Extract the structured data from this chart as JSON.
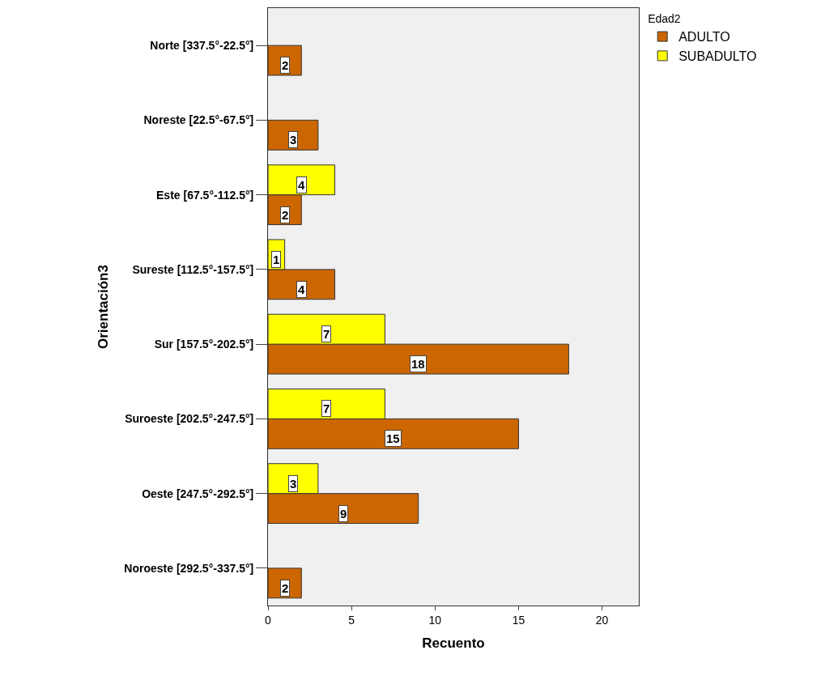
{
  "chart_data": {
    "type": "bar",
    "orientation": "horizontal",
    "xlabel": "Recuento",
    "ylabel": "Orientación3",
    "legend_title": "Edad2",
    "legend": "top right",
    "grid": false,
    "data_labels": true,
    "categories": [
      "Norte [337.5°-22.5°]",
      "Noreste [22.5°-67.5°]",
      "Este [67.5°-112.5°]",
      "Sureste [112.5°-157.5°]",
      "Sur [157.5°-202.5°]",
      "Suroeste [202.5°-247.5°]",
      "Oeste [247.5°-292.5°]",
      "Noroeste [292.5°-337.5°]"
    ],
    "series": [
      {
        "name": "ADULTO",
        "color": "#cc6600",
        "values": [
          2,
          3,
          2,
          4,
          18,
          15,
          9,
          2
        ]
      },
      {
        "name": "SUBADULTO",
        "color": "#ffff00",
        "values": [
          null,
          null,
          4,
          1,
          7,
          7,
          3,
          null
        ]
      }
    ],
    "xlim": [
      0,
      22.2
    ],
    "xticks": [
      0,
      5,
      10,
      15,
      20
    ]
  }
}
